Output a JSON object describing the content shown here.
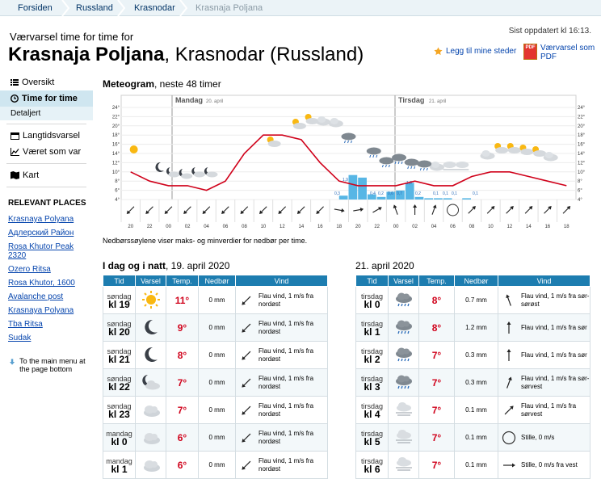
{
  "breadcrumb": [
    "Forsiden",
    "Russland",
    "Krasnodar",
    "Krasnaja Poljana"
  ],
  "header": {
    "subtitle": "Værvarsel time for time for",
    "place": "Krasnaja Poljana",
    "region": ", Krasnodar (Russland)",
    "updated": "Sist oppdatert kl 16:13.",
    "favorite": "Legg til mine steder",
    "pdf_line1": "Værvarsel som",
    "pdf_line2": "PDF",
    "pdf_icon": "PDF"
  },
  "nav": {
    "items": [
      {
        "label": "Oversikt",
        "icon": "list-icon"
      },
      {
        "label": "Time for time",
        "icon": "clock-icon",
        "active": true
      },
      {
        "label": "Detaljert",
        "sub": true
      },
      {
        "label": "Langtidsvarsel",
        "icon": "calendar-icon"
      },
      {
        "label": "Været som var",
        "icon": "chart-icon"
      },
      {
        "label": "Kart",
        "icon": "map-icon"
      }
    ],
    "relevant_title": "RELEVANT PLACES",
    "relevant": [
      "Krasnaya Polyana",
      "Адлерский Район",
      "Rosa Khutor Peak 2320",
      "Ozero Ritsa",
      "Rosa Khutor, 1600",
      "Avalanche post",
      "Krasnaya Polyana",
      "Tba Ritsa",
      "Sudak"
    ],
    "to_main": "To the main menu at the page bottom"
  },
  "meteogram": {
    "title_bold": "Meteogram",
    "title_rest": ", neste 48 timer",
    "day1": "Mandag",
    "day1_date": "20. april",
    "day2": "Tirsdag",
    "day2_date": "21. april",
    "yticks": [
      "24°",
      "22°",
      "20°",
      "18°",
      "16°",
      "14°",
      "12°",
      "10°",
      "8°",
      "6°",
      "4°"
    ],
    "hours": [
      "20",
      "22",
      "00",
      "02",
      "04",
      "06",
      "08",
      "10",
      "12",
      "14",
      "16",
      "18",
      "20",
      "22",
      "00",
      "02",
      "04",
      "06",
      "08",
      "10",
      "12",
      "14",
      "16",
      "18"
    ],
    "note": "Nedbørssøylene viser maks- og minverdier for nedbør per time."
  },
  "chart_data": {
    "type": "line",
    "temperature": [
      10,
      8,
      7,
      7,
      6,
      8,
      14,
      18,
      18,
      17,
      12,
      8,
      7,
      7,
      7,
      8,
      7,
      7,
      9,
      10,
      10,
      9,
      8,
      7
    ],
    "precipitation": [
      0,
      0,
      0,
      0,
      0,
      0,
      0,
      0,
      0,
      0,
      0,
      0.3,
      1.9,
      1.7,
      0.4,
      0.2,
      0.6,
      0.7,
      1.3,
      0.2,
      0.1,
      0.1,
      0.1,
      0,
      0.1,
      0,
      0,
      0,
      0,
      0,
      0
    ],
    "precip_labels": [
      "0,3",
      "1,9",
      "",
      "0,4",
      "0,2",
      "0,6",
      "0,7",
      "1,3",
      "0,2",
      "0,1",
      "0,1",
      "0,1",
      "0,1"
    ],
    "ylim": [
      4,
      24
    ]
  },
  "sections": {
    "left_title_bold": "I dag og i natt",
    "left_title_rest": ", 19. april 2020",
    "right_title": "21. april 2020",
    "headers": [
      "Tid",
      "Varsel",
      "Temp.",
      "Nedbør",
      "Vind"
    ]
  },
  "left_rows": [
    {
      "day": "søndag",
      "time": "kl 19",
      "icon": "sun-icon",
      "temp": "11°",
      "precip": "0 mm",
      "wind": "Flau vind, 1 m/s fra nordøst",
      "arrow": "nordost"
    },
    {
      "day": "søndag",
      "time": "kl 20",
      "icon": "moon-icon",
      "temp": "9°",
      "precip": "0 mm",
      "wind": "Flau vind, 1 m/s fra nordøst",
      "arrow": "nordost"
    },
    {
      "day": "søndag",
      "time": "kl 21",
      "icon": "moon-icon",
      "temp": "8°",
      "precip": "0 mm",
      "wind": "Flau vind, 1 m/s fra nordøst",
      "arrow": "nordost"
    },
    {
      "day": "søndag",
      "time": "kl 22",
      "icon": "moon-cloud-icon",
      "temp": "7°",
      "precip": "0 mm",
      "wind": "Flau vind, 1 m/s fra nordøst",
      "arrow": "nordost"
    },
    {
      "day": "søndag",
      "time": "kl 23",
      "icon": "cloud-icon",
      "temp": "7°",
      "precip": "0 mm",
      "wind": "Flau vind, 1 m/s fra nordøst",
      "arrow": "nordost"
    },
    {
      "day": "mandag",
      "time": "kl 0",
      "icon": "cloud-icon",
      "temp": "6°",
      "precip": "0 mm",
      "wind": "Flau vind, 1 m/s fra nordøst",
      "arrow": "nordost"
    },
    {
      "day": "mandag",
      "time": "kl 1",
      "icon": "cloud-icon",
      "temp": "6°",
      "precip": "0 mm",
      "wind": "Flau vind, 1 m/s fra nordøst",
      "arrow": "nordost"
    }
  ],
  "right_rows": [
    {
      "day": "tirsdag",
      "time": "kl 0",
      "icon": "rain-icon",
      "temp": "8°",
      "precip": "0.7 mm",
      "wind": "Flau vind, 1 m/s fra sør-sørøst",
      "arrow": "sorsorost"
    },
    {
      "day": "tirsdag",
      "time": "kl 1",
      "icon": "rain-icon",
      "temp": "8°",
      "precip": "1.2 mm",
      "wind": "Flau vind, 1 m/s fra sør",
      "arrow": "sor"
    },
    {
      "day": "tirsdag",
      "time": "kl 2",
      "icon": "rain-icon",
      "temp": "7°",
      "precip": "0.3 mm",
      "wind": "Flau vind, 1 m/s fra sør",
      "arrow": "sor"
    },
    {
      "day": "tirsdag",
      "time": "kl 3",
      "icon": "rain-icon",
      "temp": "7°",
      "precip": "0.3 mm",
      "wind": "Flau vind, 1 m/s fra sør-sørvest",
      "arrow": "sorsorvest"
    },
    {
      "day": "tirsdag",
      "time": "kl 4",
      "icon": "fog-icon",
      "temp": "7°",
      "precip": "0.1 mm",
      "wind": "Flau vind, 1 m/s fra sørvest",
      "arrow": "sorvest"
    },
    {
      "day": "tirsdag",
      "time": "kl 5",
      "icon": "fog-icon",
      "temp": "7°",
      "precip": "0.1 mm",
      "wind": "Stille, 0 m/s",
      "arrow": "calm"
    },
    {
      "day": "tirsdag",
      "time": "kl 6",
      "icon": "fog-icon",
      "temp": "7°",
      "precip": "0.1 mm",
      "wind": "Stille, 0 m/s fra vest",
      "arrow": "vest"
    }
  ]
}
